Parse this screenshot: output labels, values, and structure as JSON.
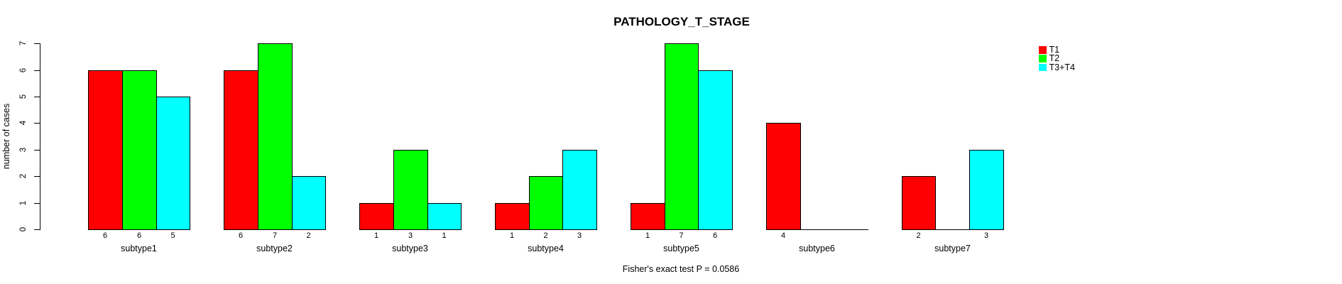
{
  "title": "PATHOLOGY_T_STAGE",
  "footnote": "Fisher's exact test P = 0.0586",
  "chart_data": {
    "type": "bar",
    "grouped": true,
    "title": "PATHOLOGY_T_STAGE",
    "xlabel": "",
    "ylabel": "number of cases",
    "ylim": [
      0,
      7
    ],
    "yticks": [
      0,
      1,
      2,
      3,
      4,
      5,
      6,
      7
    ],
    "grid": false,
    "background": "#FFFFFF",
    "legend_position": "top-right",
    "bar_count_labels_shown_under_bars": true,
    "zero_height_bars_drawn_as_baseline_lines": true,
    "categories": [
      "subtype1",
      "subtype2",
      "subtype3",
      "subtype4",
      "subtype5",
      "subtype6",
      "subtype7"
    ],
    "series": [
      {
        "name": "T1",
        "color": "#FF0000",
        "values": [
          6,
          6,
          1,
          1,
          1,
          4,
          2
        ]
      },
      {
        "name": "T2",
        "color": "#00FF00",
        "values": [
          6,
          7,
          3,
          2,
          7,
          0,
          0
        ]
      },
      {
        "name": "T3+T4",
        "color": "#00FFFF",
        "values": [
          5,
          2,
          1,
          3,
          6,
          0,
          3
        ]
      }
    ],
    "annotation": "Fisher's exact test P = 0.0586"
  }
}
